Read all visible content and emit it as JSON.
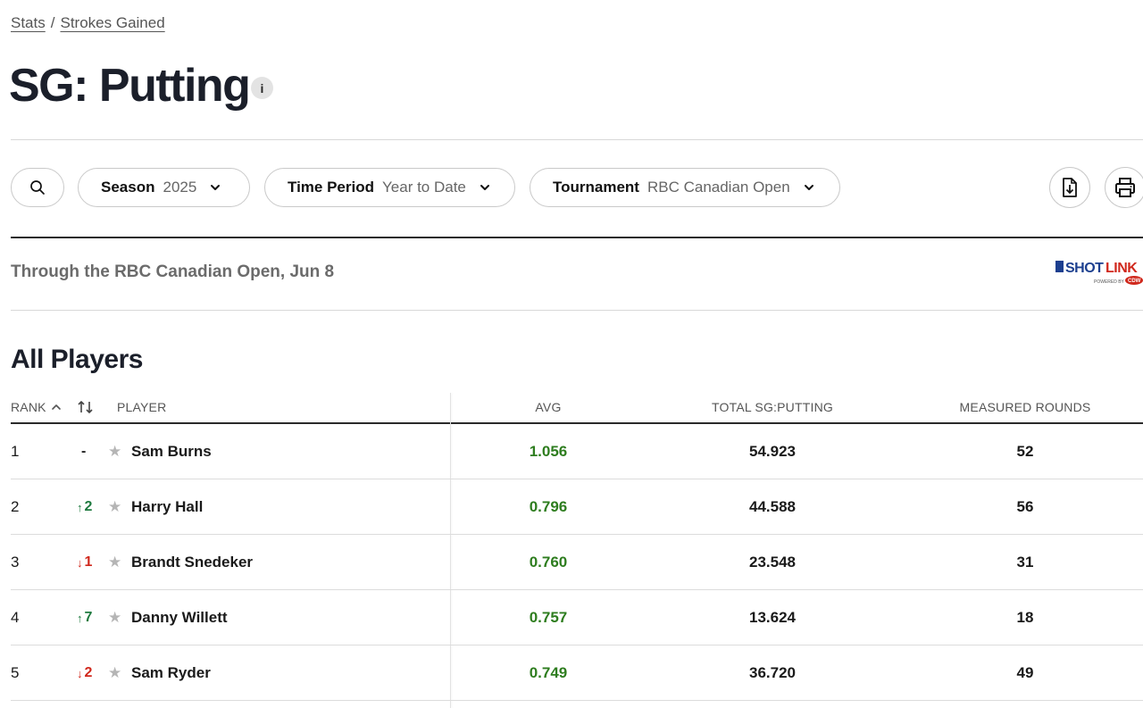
{
  "breadcrumb": {
    "stats": "Stats",
    "sep": "/",
    "strokes_gained": "Strokes Gained"
  },
  "page_title": "SG: Putting",
  "info_icon": "i",
  "filters": {
    "season": {
      "label": "Season",
      "value": "2025"
    },
    "time_period": {
      "label": "Time Period",
      "value": "Year to Date"
    },
    "tournament": {
      "label": "Tournament",
      "value": "RBC Canadian Open"
    }
  },
  "through_text": "Through the RBC Canadian Open, Jun 8",
  "logo": {
    "text": "SHOTLINK",
    "sub": "POWERED BY CDW"
  },
  "section_title": "All Players",
  "columns": {
    "rank": "RANK",
    "player": "PLAYER",
    "avg": "AVG",
    "total": "TOTAL SG:PUTTING",
    "rounds": "MEASURED ROUNDS"
  },
  "rows": [
    {
      "rank": "1",
      "move": "-",
      "dir": "none",
      "player": "Sam Burns",
      "avg": "1.056",
      "total": "54.923",
      "rounds": "52"
    },
    {
      "rank": "2",
      "move": "2",
      "dir": "up",
      "player": "Harry Hall",
      "avg": "0.796",
      "total": "44.588",
      "rounds": "56"
    },
    {
      "rank": "3",
      "move": "1",
      "dir": "down",
      "player": "Brandt Snedeker",
      "avg": "0.760",
      "total": "23.548",
      "rounds": "31"
    },
    {
      "rank": "4",
      "move": "7",
      "dir": "up",
      "player": "Danny Willett",
      "avg": "0.757",
      "total": "13.624",
      "rounds": "18"
    },
    {
      "rank": "5",
      "move": "2",
      "dir": "down",
      "player": "Sam Ryder",
      "avg": "0.749",
      "total": "36.720",
      "rounds": "49"
    }
  ],
  "colors": {
    "up": "#1f7a3f",
    "down": "#d0281c",
    "avg": "#2e7d1f",
    "logo_red": "#d0281c",
    "logo_blue": "#1c3f8f"
  }
}
